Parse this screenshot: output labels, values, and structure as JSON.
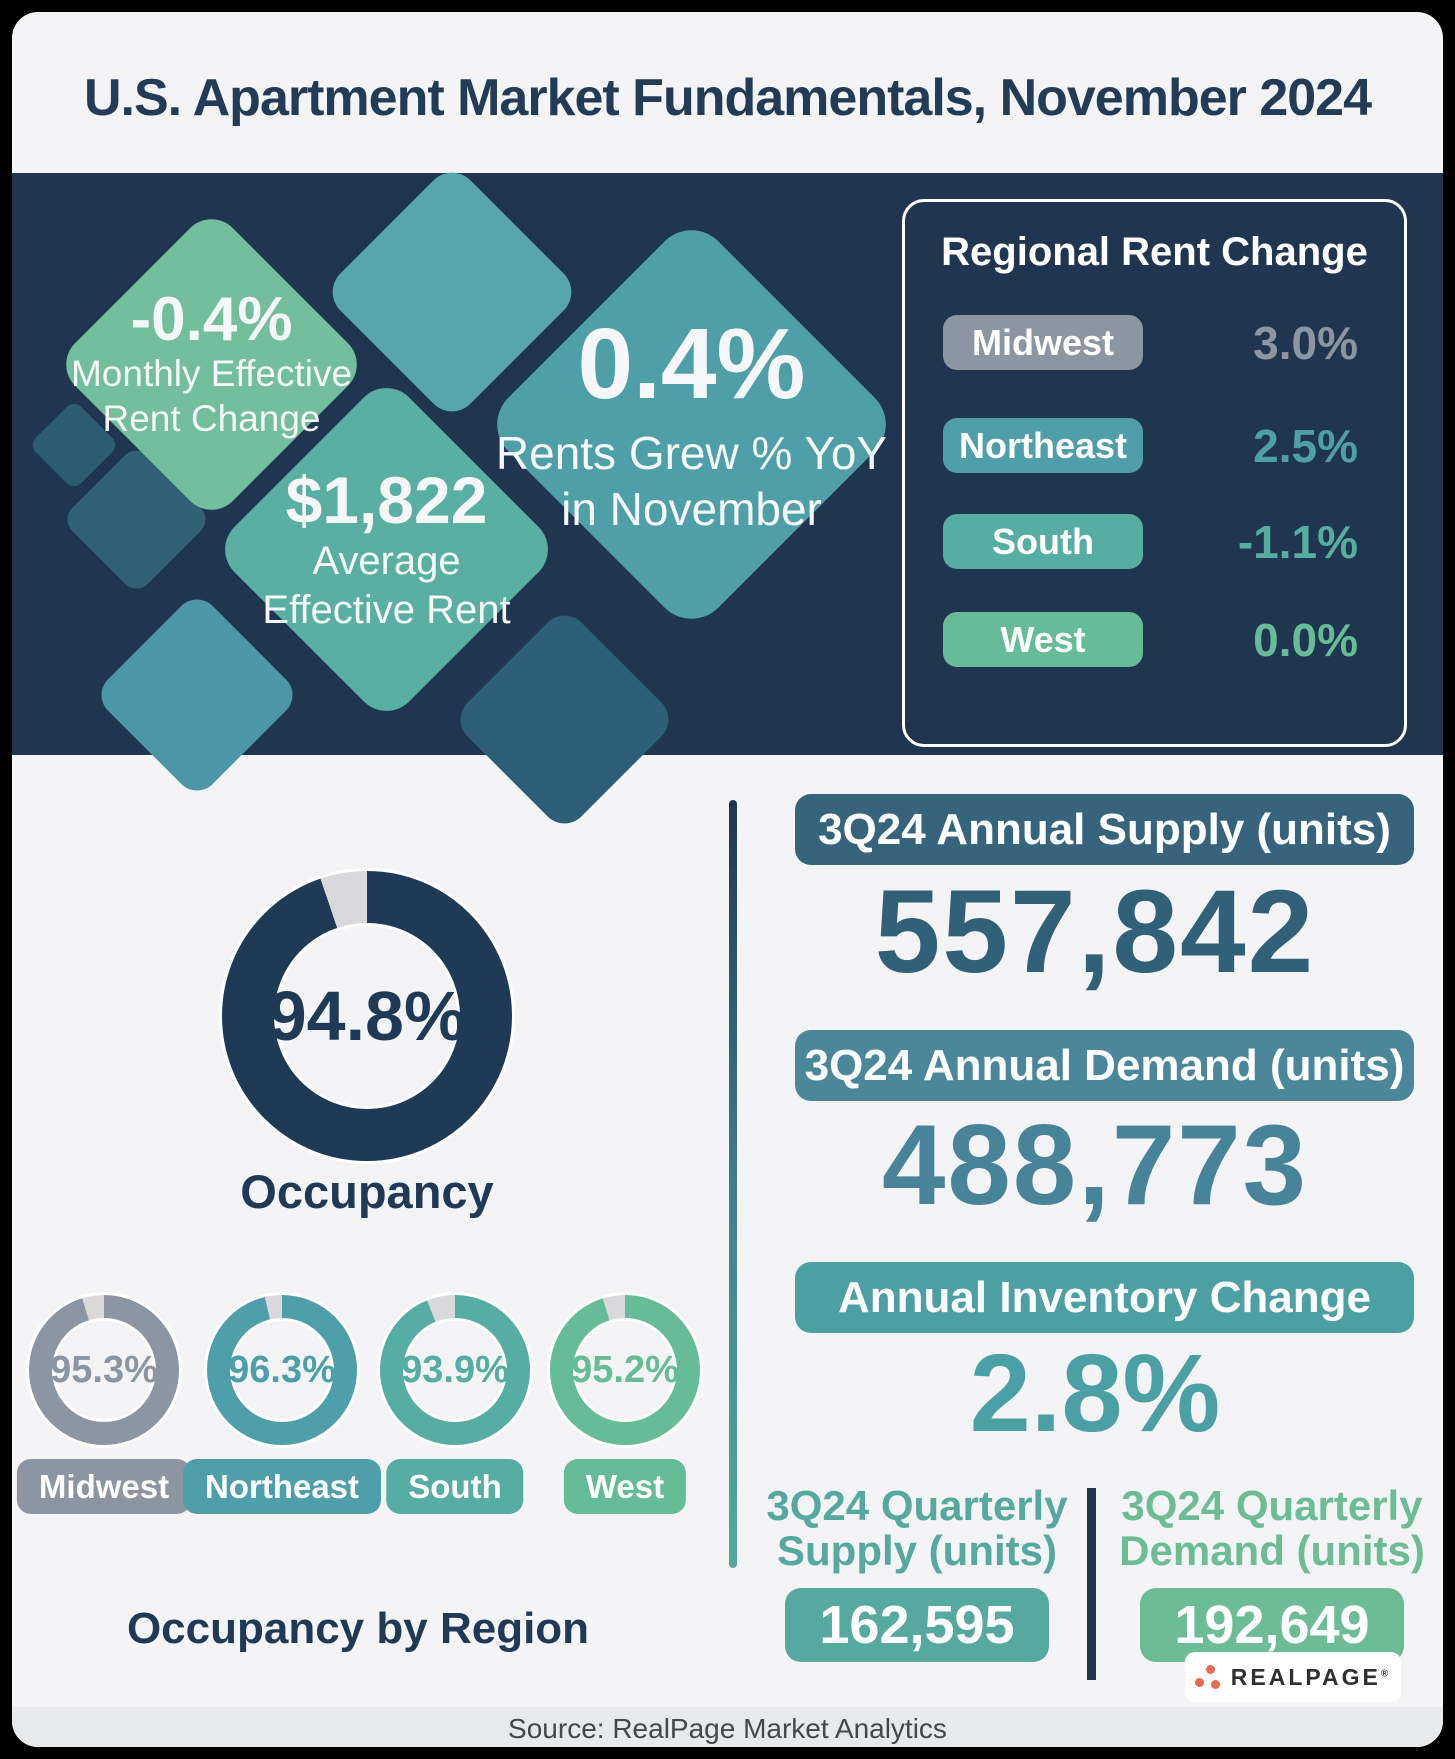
{
  "page": {
    "title": "U.S. Apartment Market Fundamentals, November 2024",
    "source": "Source: RealPage Market Analytics",
    "brand": {
      "name": "REALPAGE",
      "trademark": "®",
      "dot_color": "#E86A4E"
    }
  },
  "diamonds": {
    "monthly_rent_change": {
      "value": "-0.4%",
      "label_line1": "Monthly Effective",
      "label_line2": "Rent Change"
    },
    "average_rent": {
      "value": "$1,822",
      "label_line1": "Average",
      "label_line2": "Effective Rent"
    },
    "yoy_rent_growth": {
      "value": "0.4%",
      "label_line1": "Rents Grew % YoY",
      "label_line2": "in November"
    }
  },
  "regional_rent_change": {
    "title": "Regional Rent Change",
    "rows": [
      {
        "label": "Midwest",
        "value": "3.0%",
        "color": "#8C96A2"
      },
      {
        "label": "Northeast",
        "value": "2.5%",
        "color": "#4F9FAB"
      },
      {
        "label": "South",
        "value": "-1.1%",
        "color": "#56ADA1"
      },
      {
        "label": "West",
        "value": "0.0%",
        "color": "#66BC96"
      }
    ]
  },
  "occupancy": {
    "gap_color": "#D9D9DB",
    "national": {
      "value": "94.8%",
      "pct": 94.8,
      "label": "Occupancy",
      "color": "#1E3A56"
    },
    "by_region_title": "Occupancy by Region",
    "regions": [
      {
        "label": "Midwest",
        "value": "95.3%",
        "pct": 95.3,
        "color": "#8C96A2"
      },
      {
        "label": "Northeast",
        "value": "96.3%",
        "pct": 96.3,
        "color": "#4F9FAB"
      },
      {
        "label": "South",
        "value": "93.9%",
        "pct": 93.9,
        "color": "#56ADA1"
      },
      {
        "label": "West",
        "value": "95.2%",
        "pct": 95.2,
        "color": "#66BC96"
      }
    ]
  },
  "supply_demand": {
    "annual_supply": {
      "label": "3Q24 Annual Supply (units)",
      "value": "557,842",
      "pill_color": "#35647C",
      "value_color": "#316079"
    },
    "annual_demand": {
      "label": "3Q24 Annual Demand (units)",
      "value": "488,773",
      "pill_color": "#4A879B",
      "value_color": "#47849A"
    },
    "inventory_change": {
      "label": "Annual Inventory Change",
      "value": "2.8%",
      "pill_color": "#4CA0A4",
      "value_color": "#4AA0A5"
    },
    "quarterly_supply": {
      "label_line1": "3Q24 Quarterly",
      "label_line2": "Supply (units)",
      "value": "162,595",
      "color": "#55A99F"
    },
    "quarterly_demand": {
      "label_line1": "3Q24 Quarterly",
      "label_line2": "Demand (units)",
      "value": "192,649",
      "color": "#6CBD95"
    }
  },
  "chart_data": [
    {
      "type": "pie",
      "title": "Occupancy",
      "slices": [
        {
          "label": "Occupied",
          "value": 94.8
        },
        {
          "label": "Vacant",
          "value": 5.2
        }
      ],
      "center_label": "94.8%",
      "style": "donut"
    },
    {
      "type": "pie",
      "title": "Occupancy by Region",
      "series": [
        {
          "name": "Midwest",
          "occupied_pct": 95.3,
          "vacant_pct": 4.7
        },
        {
          "name": "Northeast",
          "occupied_pct": 96.3,
          "vacant_pct": 3.7
        },
        {
          "name": "South",
          "occupied_pct": 93.9,
          "vacant_pct": 6.1
        },
        {
          "name": "West",
          "occupied_pct": 95.2,
          "vacant_pct": 4.8
        }
      ],
      "style": "donut"
    },
    {
      "type": "table",
      "title": "Regional Rent Change",
      "categories": [
        "Midwest",
        "Northeast",
        "South",
        "West"
      ],
      "values": [
        3.0,
        2.5,
        -1.1,
        0.0
      ],
      "unit": "%"
    },
    {
      "type": "table",
      "title": "3Q24 Supply & Demand",
      "categories": [
        "Annual Supply (units)",
        "Annual Demand (units)",
        "Annual Inventory Change",
        "Quarterly Supply (units)",
        "Quarterly Demand (units)"
      ],
      "values": [
        557842,
        488773,
        "2.8%",
        162595,
        192649
      ]
    }
  ]
}
